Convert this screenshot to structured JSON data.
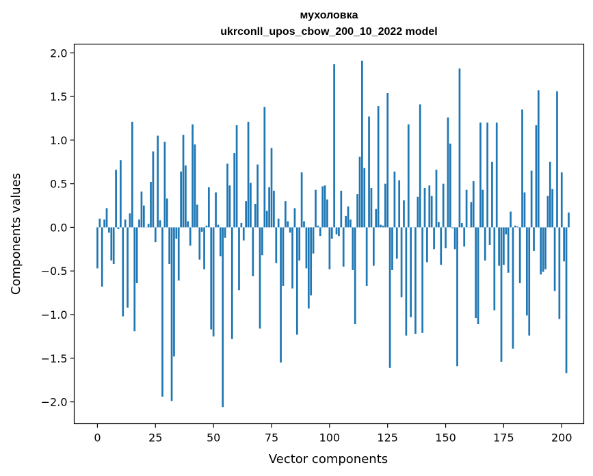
{
  "chart_data": {
    "type": "bar",
    "title": "мухоловка",
    "subtitle": "ukrconll_upos_cbow_200_10_2022 model",
    "xlabel": "Vector components",
    "ylabel": "Components values",
    "xlim": [
      -10,
      209.5
    ],
    "ylim": [
      -2.25,
      2.1
    ],
    "xticks": [
      0,
      25,
      50,
      75,
      100,
      125,
      150,
      175,
      200
    ],
    "yticks": [
      2.0,
      1.5,
      1.0,
      0.5,
      0.0,
      -0.5,
      -1.0,
      -1.5,
      -2.0
    ],
    "xtick_labels": [
      "0",
      "25",
      "50",
      "75",
      "100",
      "125",
      "150",
      "175",
      "200"
    ],
    "ytick_labels": [
      "2.0",
      "1.5",
      "1.0",
      "0.5",
      "0.0",
      "−0.5",
      "−1.0",
      "−1.5",
      "−2.0"
    ],
    "bar_color": "#1f77b4",
    "values": [
      -0.47,
      0.1,
      -0.68,
      0.09,
      0.22,
      -0.06,
      -0.38,
      -0.42,
      0.66,
      -0.02,
      0.77,
      -1.02,
      0.09,
      -0.92,
      0.16,
      1.21,
      -1.19,
      -0.64,
      0.09,
      0.41,
      0.25,
      0.0,
      0.04,
      0.52,
      0.87,
      -0.17,
      1.05,
      0.08,
      -1.94,
      0.98,
      0.33,
      -0.42,
      -1.99,
      -1.48,
      -0.13,
      -0.61,
      0.64,
      1.06,
      0.71,
      0.07,
      -0.21,
      1.18,
      0.95,
      0.26,
      -0.37,
      -0.05,
      -0.48,
      0.02,
      0.46,
      -1.17,
      -1.25,
      0.4,
      0.03,
      -0.33,
      -2.06,
      -0.12,
      0.73,
      0.48,
      -1.28,
      0.85,
      1.17,
      -0.72,
      0.05,
      -0.15,
      0.3,
      1.21,
      0.51,
      -0.56,
      0.27,
      0.72,
      -1.16,
      -0.32,
      1.38,
      0.19,
      0.46,
      0.91,
      0.42,
      -0.41,
      0.1,
      -1.55,
      -0.67,
      0.3,
      0.07,
      -0.06,
      -0.7,
      0.22,
      -1.23,
      -0.38,
      0.63,
      0.07,
      -0.47,
      -0.93,
      -0.78,
      -0.3,
      0.43,
      0.02,
      -0.1,
      0.47,
      0.48,
      0.32,
      -0.48,
      -0.13,
      1.87,
      -0.08,
      -0.1,
      0.42,
      -0.45,
      0.13,
      0.24,
      0.09,
      -0.49,
      -1.11,
      0.38,
      0.81,
      1.91,
      0.68,
      -0.67,
      1.27,
      0.45,
      -0.44,
      0.21,
      1.39,
      0.03,
      0.02,
      0.5,
      1.54,
      -1.61,
      -0.49,
      0.64,
      -0.36,
      0.54,
      -0.8,
      0.31,
      -1.24,
      1.18,
      -1.03,
      0.0,
      -1.22,
      0.35,
      1.41,
      -1.21,
      0.45,
      -0.4,
      0.48,
      0.36,
      -0.25,
      0.66,
      0.06,
      -0.43,
      0.5,
      -0.24,
      1.26,
      0.96,
      -0.01,
      -0.25,
      -1.59,
      1.82,
      0.05,
      -0.22,
      0.43,
      0.0,
      0.29,
      0.53,
      -1.04,
      -1.11,
      1.2,
      0.43,
      -0.38,
      1.2,
      -0.2,
      0.75,
      -0.95,
      1.2,
      -0.44,
      -1.54,
      -0.43,
      -0.08,
      -0.52,
      0.18,
      -1.39,
      0.02,
      0.01,
      -0.64,
      1.35,
      0.4,
      -1.01,
      -1.24,
      0.65,
      -0.27,
      1.17,
      1.57,
      -0.54,
      -0.51,
      -0.48,
      0.36,
      0.75,
      0.44,
      -0.73,
      1.56,
      -1.05,
      0.63,
      -0.39,
      -1.67,
      0.17
    ]
  }
}
